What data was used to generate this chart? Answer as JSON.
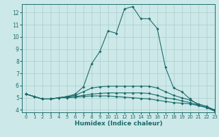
{
  "xlabel": "Humidex (Indice chaleur)",
  "background_color": "#cde8e8",
  "grid_color": "#aacccc",
  "line_color": "#1a6b6b",
  "xlim": [
    -0.5,
    23
  ],
  "ylim": [
    3.8,
    12.7
  ],
  "x_ticks": [
    0,
    1,
    2,
    3,
    4,
    5,
    6,
    7,
    8,
    9,
    10,
    11,
    12,
    13,
    14,
    15,
    16,
    17,
    18,
    19,
    20,
    21,
    22,
    23
  ],
  "y_ticks": [
    4,
    5,
    6,
    7,
    8,
    9,
    10,
    11,
    12
  ],
  "series": [
    {
      "x": [
        0,
        1,
        2,
        3,
        4,
        5,
        6,
        7,
        8,
        9,
        10,
        11,
        12,
        13,
        14,
        15,
        16,
        17,
        18,
        19,
        20,
        21,
        22,
        23
      ],
      "y": [
        5.3,
        5.1,
        4.9,
        4.9,
        5.0,
        5.1,
        5.3,
        5.9,
        7.8,
        8.8,
        10.5,
        10.3,
        12.3,
        12.5,
        11.5,
        11.5,
        10.7,
        7.5,
        5.8,
        5.5,
        4.9,
        4.4,
        4.2,
        3.9
      ]
    },
    {
      "x": [
        0,
        1,
        2,
        3,
        4,
        5,
        6,
        7,
        8,
        9,
        10,
        11,
        12,
        13,
        14,
        15,
        16,
        17,
        18,
        19,
        20,
        21,
        22,
        23
      ],
      "y": [
        5.3,
        5.1,
        4.9,
        4.9,
        5.0,
        5.1,
        5.2,
        5.5,
        5.8,
        5.9,
        5.95,
        5.95,
        5.95,
        5.95,
        5.95,
        5.95,
        5.8,
        5.5,
        5.2,
        5.0,
        4.8,
        4.5,
        4.3,
        4.0
      ]
    },
    {
      "x": [
        0,
        1,
        2,
        3,
        4,
        5,
        6,
        7,
        8,
        9,
        10,
        11,
        12,
        13,
        14,
        15,
        16,
        17,
        18,
        19,
        20,
        21,
        22,
        23
      ],
      "y": [
        5.3,
        5.1,
        4.9,
        4.9,
        5.0,
        5.05,
        5.1,
        5.2,
        5.3,
        5.35,
        5.4,
        5.4,
        5.4,
        5.4,
        5.4,
        5.35,
        5.2,
        5.0,
        4.9,
        4.75,
        4.6,
        4.4,
        4.2,
        4.0
      ]
    },
    {
      "x": [
        0,
        1,
        2,
        3,
        4,
        5,
        6,
        7,
        8,
        9,
        10,
        11,
        12,
        13,
        14,
        15,
        16,
        17,
        18,
        19,
        20,
        21,
        22,
        23
      ],
      "y": [
        5.3,
        5.1,
        4.9,
        4.9,
        5.0,
        5.0,
        5.05,
        5.1,
        5.15,
        5.15,
        5.15,
        5.1,
        5.05,
        5.0,
        4.95,
        4.9,
        4.8,
        4.7,
        4.6,
        4.55,
        4.5,
        4.35,
        4.2,
        3.95
      ]
    }
  ]
}
